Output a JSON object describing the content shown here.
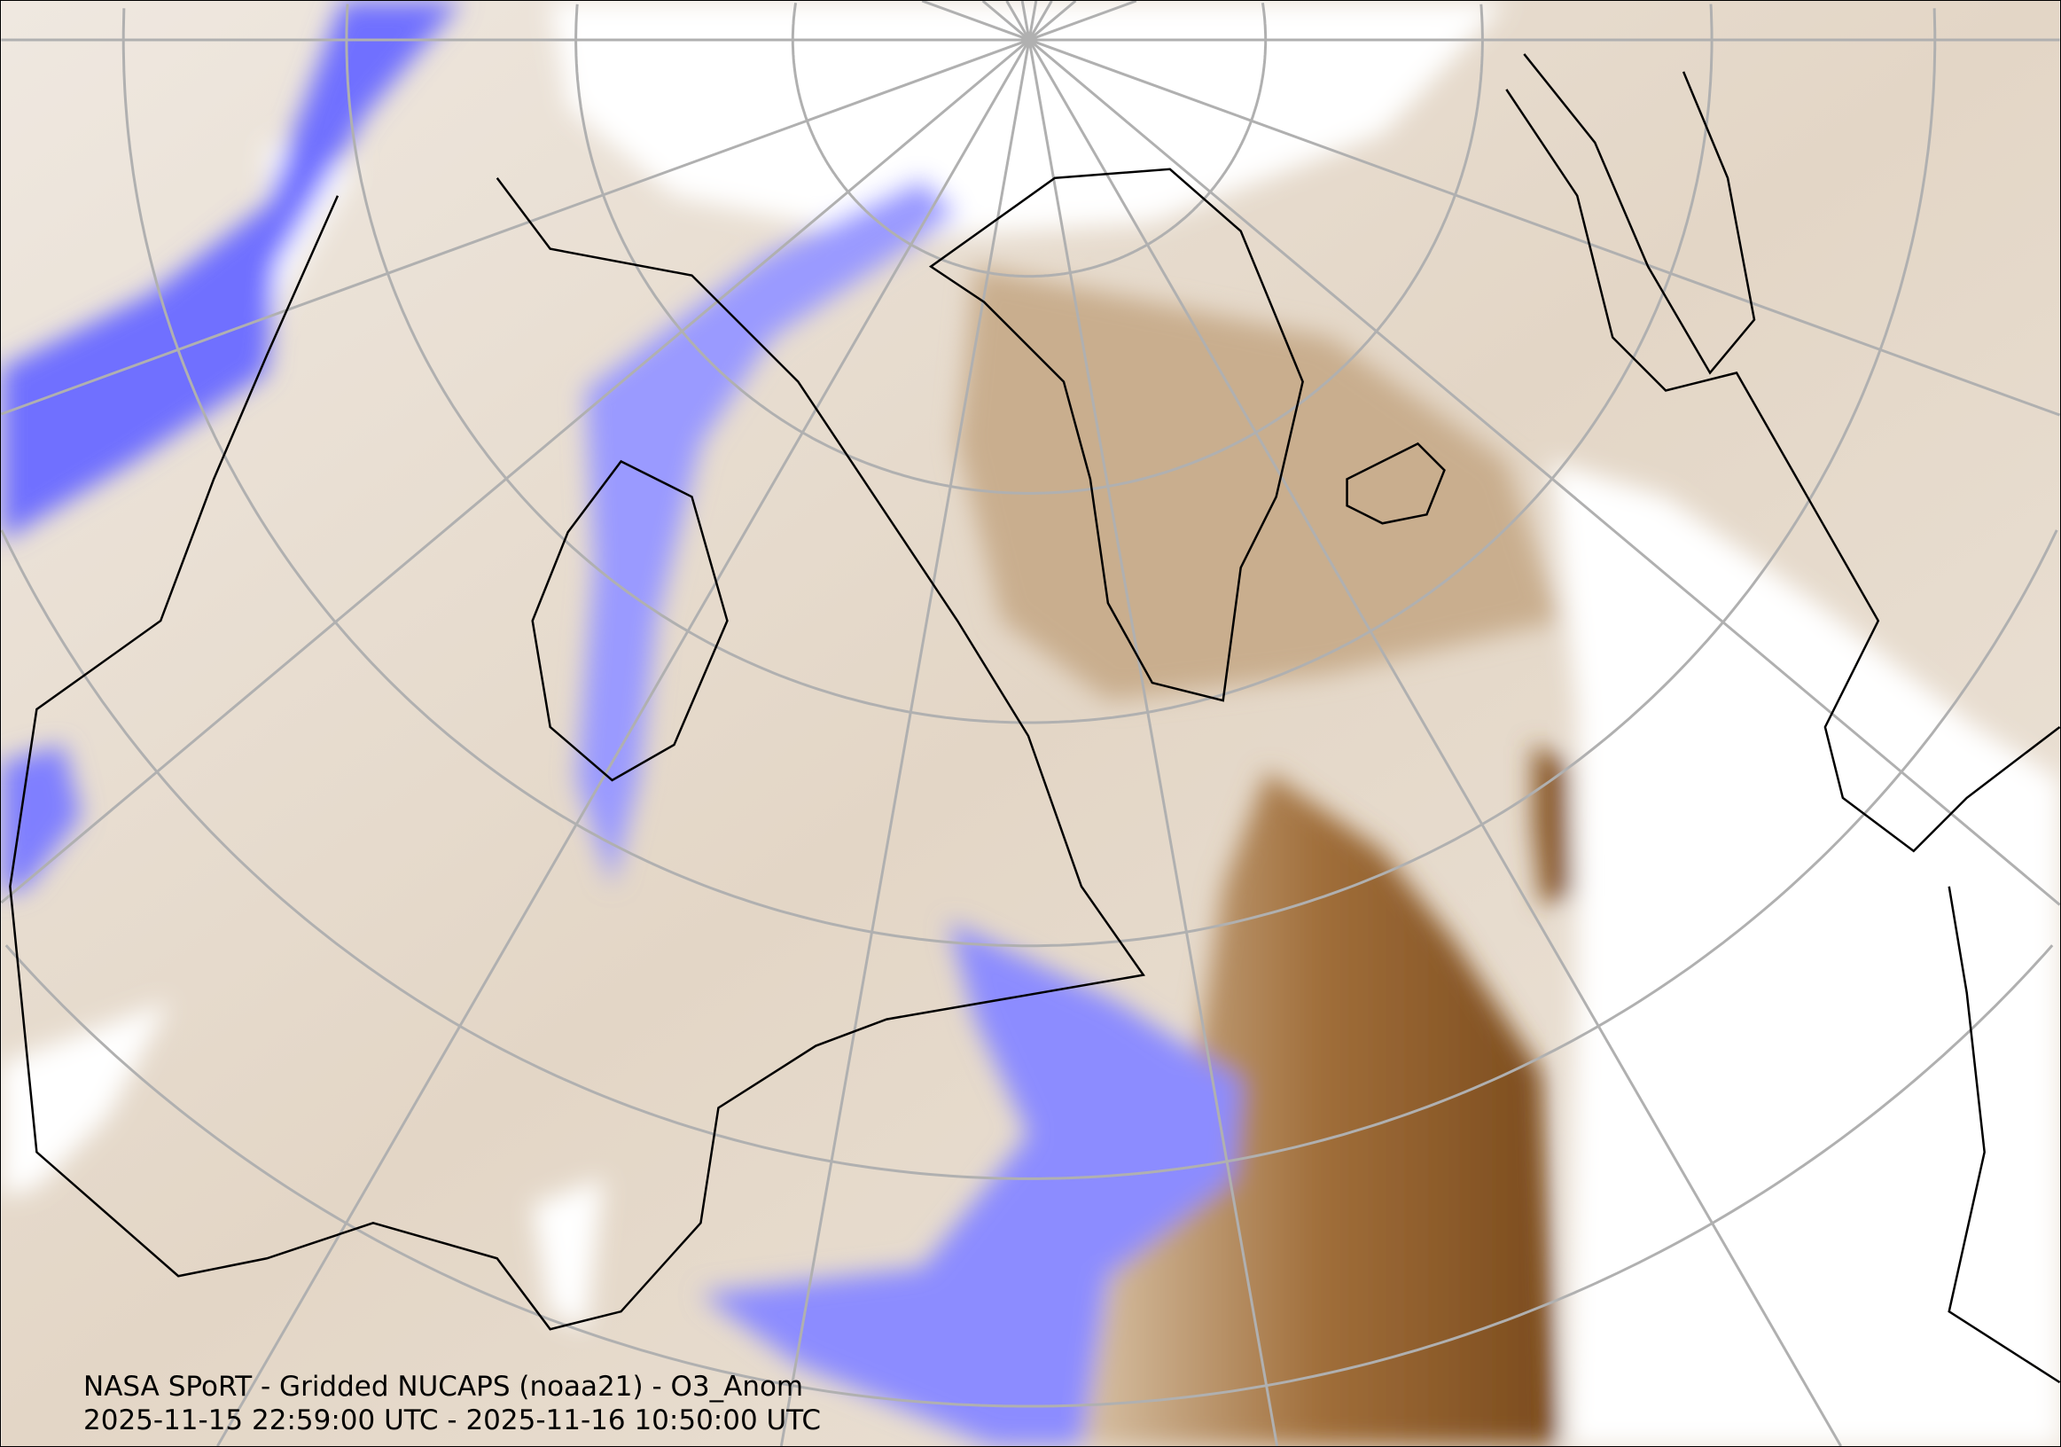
{
  "map": {
    "caption_line1": "NASA SPoRT - Gridded NUCAPS (noaa21) - O3_Anom",
    "caption_line2": "2025-11-15 22:59:00 UTC - 2025-11-16 10:50:00 UTC",
    "projection": "north-polar stereographic",
    "colors": {
      "background_neutral": "#ece4da",
      "negative_anomaly": "#7b7bff",
      "positive_anomaly": "#7a4a1c",
      "no_data": "#ffffff",
      "graticule": "#b0b0b0",
      "coastline": "#000000"
    }
  }
}
